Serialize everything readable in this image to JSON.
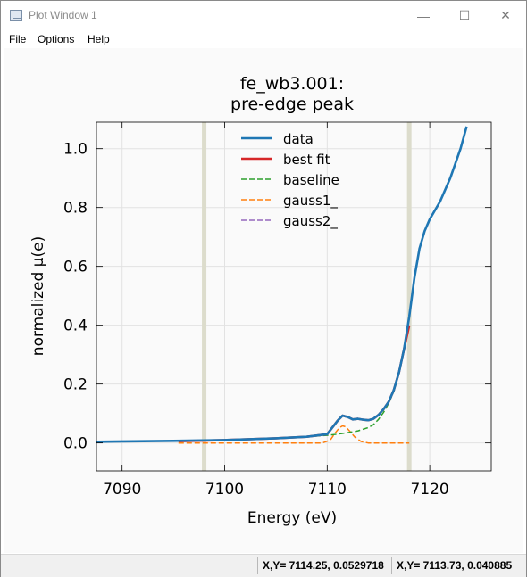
{
  "window": {
    "title": "Plot Window 1",
    "minimize_glyph": "—",
    "maximize_glyph": "☐",
    "close_glyph": "✕"
  },
  "menu": {
    "items": [
      "File",
      "Options",
      "Help"
    ]
  },
  "status": {
    "cursor1": "X,Y= 7114.25, 0.0529718",
    "cursor2": "X,Y= 7113.73, 0.040885"
  },
  "colors": {
    "data": "#1f77b4",
    "best_fit": "#d62728",
    "baseline": "#2ca02c",
    "gauss1": "#ff7f0e",
    "gauss2": "#9467bd",
    "marker": "#dcdccc"
  },
  "chart_data": {
    "type": "line",
    "title": "fe_wb3.001:\npre-edge peak",
    "xlabel": "Energy (eV)",
    "ylabel": "normalized μ(e)",
    "xlim": [
      7087.5,
      7126.0
    ],
    "ylim": [
      -0.095,
      1.09
    ],
    "xticks": [
      7090,
      7100,
      7110,
      7120
    ],
    "yticks": [
      0.0,
      0.2,
      0.4,
      0.6,
      0.8,
      1.0
    ],
    "xtick_labels": [
      "7090",
      "7100",
      "7110",
      "7120"
    ],
    "ytick_labels": [
      "0.0",
      "0.2",
      "0.4",
      "0.6",
      "0.8",
      "1.0"
    ],
    "vertical_markers": [
      7098.0,
      7118.0
    ],
    "grid": true,
    "legend_position": "top-center",
    "series": [
      {
        "name": "data",
        "style": "solid",
        "color_key": "data",
        "x": [
          7087.5,
          7095,
          7100,
          7105,
          7108,
          7110,
          7111,
          7111.5,
          7112,
          7112.5,
          7113,
          7113.5,
          7114,
          7114.5,
          7115,
          7115.5,
          7116,
          7116.5,
          7117,
          7117.5,
          7118,
          7118.5,
          7119,
          7119.5,
          7120,
          7121,
          7122,
          7123,
          7123.6
        ],
        "y": [
          0.004,
          0.007,
          0.01,
          0.016,
          0.021,
          0.03,
          0.075,
          0.093,
          0.088,
          0.08,
          0.082,
          0.079,
          0.077,
          0.082,
          0.095,
          0.115,
          0.14,
          0.18,
          0.24,
          0.32,
          0.43,
          0.56,
          0.66,
          0.72,
          0.76,
          0.82,
          0.9,
          1.0,
          1.075
        ]
      },
      {
        "name": "best fit",
        "style": "solid",
        "color_key": "best_fit",
        "x": [
          7095.5,
          7100,
          7105,
          7108,
          7110,
          7111,
          7111.5,
          7112,
          7112.5,
          7113,
          7113.5,
          7114,
          7114.5,
          7115,
          7115.5,
          7116,
          7116.5,
          7117,
          7117.5,
          7118
        ],
        "y": [
          0.006,
          0.01,
          0.016,
          0.021,
          0.03,
          0.075,
          0.093,
          0.088,
          0.08,
          0.082,
          0.079,
          0.077,
          0.082,
          0.095,
          0.115,
          0.14,
          0.18,
          0.24,
          0.32,
          0.4
        ]
      },
      {
        "name": "baseline",
        "style": "dashed",
        "color_key": "baseline",
        "x": [
          7095.5,
          7100,
          7105,
          7108,
          7110,
          7111,
          7112,
          7113,
          7114,
          7114.5,
          7115,
          7115.5,
          7116,
          7116.5,
          7117,
          7117.5,
          7118
        ],
        "y": [
          0.006,
          0.01,
          0.016,
          0.021,
          0.026,
          0.03,
          0.035,
          0.041,
          0.052,
          0.062,
          0.08,
          0.104,
          0.135,
          0.175,
          0.236,
          0.316,
          0.4
        ]
      },
      {
        "name": "gauss1_",
        "style": "dashed",
        "color_key": "gauss1",
        "x": [
          7095.5,
          7109.5,
          7110.3,
          7110.8,
          7111.2,
          7111.5,
          7111.8,
          7112.2,
          7112.7,
          7113.3,
          7114,
          7118
        ],
        "y": [
          0.0,
          0.0,
          0.01,
          0.035,
          0.052,
          0.058,
          0.055,
          0.04,
          0.02,
          0.005,
          0.0,
          0.0
        ]
      },
      {
        "name": "gauss2_",
        "style": "dashed",
        "color_key": "gauss2",
        "x": [],
        "y": []
      }
    ]
  }
}
